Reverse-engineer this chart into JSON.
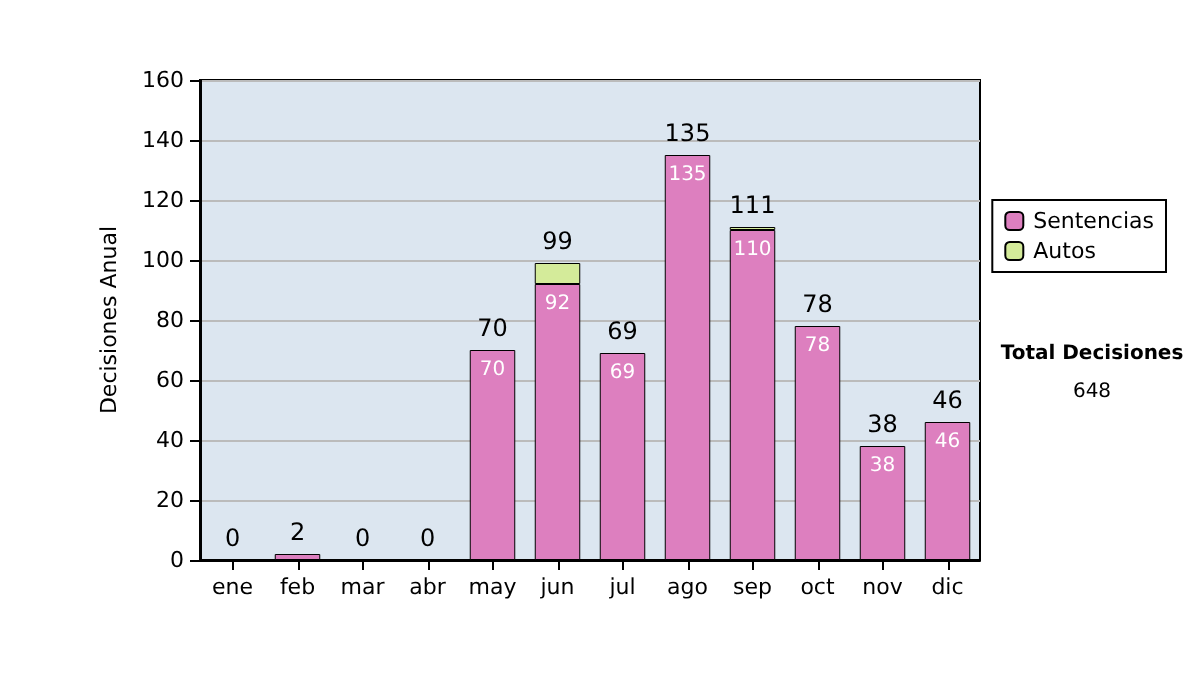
{
  "chart_data": {
    "type": "bar",
    "stacked": true,
    "ylabel": "Decisiones Anual",
    "categories": [
      "ene",
      "feb",
      "mar",
      "abr",
      "may",
      "jun",
      "jul",
      "ago",
      "sep",
      "oct",
      "nov",
      "dic"
    ],
    "series": [
      {
        "name": "Sentencias",
        "color": "#dd7fbf",
        "values": [
          0,
          2,
          0,
          0,
          70,
          92,
          69,
          135,
          110,
          78,
          38,
          46
        ],
        "value_labels": [
          null,
          null,
          null,
          null,
          "70",
          "92",
          "69",
          "135",
          "110",
          "78",
          "38",
          "46"
        ]
      },
      {
        "name": "Autos",
        "color": "#d4eb9a",
        "values": [
          0,
          0,
          0,
          0,
          0,
          7,
          0,
          0,
          1,
          0,
          0,
          0
        ]
      }
    ],
    "totals": [
      "0",
      "2",
      "0",
      "0",
      "70",
      "99",
      "69",
      "135",
      "111",
      "78",
      "38",
      "46"
    ],
    "ylim": [
      0,
      160
    ],
    "yticks": [
      0,
      20,
      40,
      60,
      80,
      100,
      120,
      140,
      160
    ],
    "grid": "y",
    "legend": "right",
    "annotations": [
      "Total Decisiones",
      "648"
    ]
  }
}
